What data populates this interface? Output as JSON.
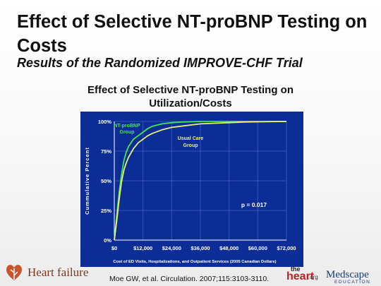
{
  "slide": {
    "title": "Effect of Selective NT-proBNP Testing on Costs",
    "subtitle": "Results of the Randomized IMPROVE-CHF Trial",
    "citation": "Moe GW, et al. Circulation. 2007;115:3103-3110."
  },
  "logos": {
    "left": "Heart failure",
    "heart_small": "the",
    "heart_big": "heart",
    "heart_org": ".org",
    "medscape": "Medscape",
    "medscape_sub": "EDUCATION"
  },
  "colors": {
    "plot_bg": "#0d2d96",
    "grid": "#3553b8",
    "axis_text": "#ffffff",
    "series_green": "#41e84a",
    "series_yellow": "#eaf07a",
    "logo_leaf": "#c9532a"
  },
  "chart_data": {
    "type": "line",
    "title": "Effect of Selective NT-proBNP Testing on Utilization/Costs",
    "xlabel": "Cost of ED Visits, Hospitalizations, and Outpatient Services (2005 Canadian Dollars)",
    "ylabel": "Cummulative Percent",
    "xlim": [
      0,
      72000
    ],
    "ylim": [
      0,
      100
    ],
    "x_ticks": [
      "$0",
      "$12,000",
      "$24,000",
      "$36,000",
      "$48,000",
      "$60,000",
      "$72,000"
    ],
    "y_ticks": [
      "0%",
      "25%",
      "50%",
      "75%",
      "100%"
    ],
    "grid": true,
    "annotation": "p = 0.017",
    "series": [
      {
        "name": "NT-proBNP Group",
        "x": [
          0,
          1000,
          2000,
          3000,
          4000,
          5000,
          6000,
          8000,
          10000,
          12000,
          14000,
          16000,
          18000,
          20000,
          24000,
          28000,
          36000,
          48000,
          60000,
          72000
        ],
        "y": [
          0,
          20,
          40,
          55,
          67,
          74,
          79,
          85,
          88,
          91,
          94,
          96,
          97,
          98,
          99,
          99.5,
          100,
          100,
          100,
          100
        ]
      },
      {
        "name": "Usual Care Group",
        "x": [
          0,
          1000,
          2000,
          3000,
          4000,
          5000,
          6000,
          8000,
          10000,
          12000,
          14000,
          16000,
          18000,
          20000,
          24000,
          28000,
          32000,
          36000,
          42000,
          48000,
          54000,
          60000,
          66000,
          72000
        ],
        "y": [
          0,
          16,
          34,
          49,
          59,
          65,
          70,
          77,
          82,
          85,
          88,
          90,
          91.5,
          93,
          95,
          96,
          97,
          98,
          98.5,
          99,
          99.5,
          99.7,
          99.9,
          100
        ]
      }
    ]
  }
}
